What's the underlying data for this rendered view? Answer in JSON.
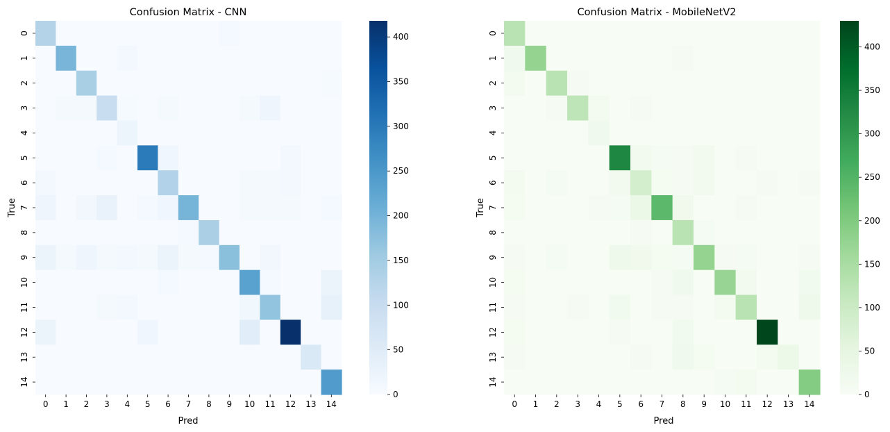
{
  "chart_data": [
    {
      "type": "heatmap",
      "title": "Confusion Matrix - CNN",
      "xlabel": "Pred",
      "ylabel": "True",
      "labels": [
        "0",
        "1",
        "2",
        "3",
        "4",
        "5",
        "6",
        "7",
        "8",
        "9",
        "10",
        "11",
        "12",
        "13",
        "14"
      ],
      "colormap": "Blues",
      "colorbar": {
        "min": 0,
        "max": 418,
        "ticks": [
          0,
          50,
          100,
          150,
          200,
          250,
          300,
          350,
          400
        ]
      },
      "matrix": [
        [
          128,
          0,
          0,
          0,
          0,
          0,
          0,
          0,
          0,
          8,
          0,
          0,
          0,
          0,
          0
        ],
        [
          0,
          196,
          0,
          0,
          10,
          0,
          0,
          0,
          0,
          0,
          0,
          0,
          0,
          0,
          0
        ],
        [
          0,
          0,
          142,
          0,
          0,
          0,
          0,
          0,
          0,
          0,
          0,
          0,
          0,
          0,
          4
        ],
        [
          0,
          6,
          6,
          98,
          4,
          0,
          6,
          0,
          0,
          0,
          6,
          18,
          0,
          0,
          0
        ],
        [
          0,
          0,
          0,
          0,
          22,
          0,
          0,
          0,
          0,
          0,
          0,
          0,
          0,
          0,
          0
        ],
        [
          0,
          0,
          0,
          8,
          0,
          298,
          16,
          0,
          0,
          0,
          0,
          0,
          10,
          0,
          0
        ],
        [
          10,
          0,
          0,
          0,
          0,
          0,
          132,
          0,
          0,
          0,
          6,
          6,
          10,
          0,
          0
        ],
        [
          18,
          0,
          12,
          30,
          0,
          8,
          16,
          198,
          0,
          0,
          6,
          6,
          6,
          0,
          8
        ],
        [
          0,
          0,
          0,
          0,
          0,
          0,
          0,
          8,
          140,
          0,
          0,
          0,
          0,
          0,
          0
        ],
        [
          26,
          6,
          18,
          6,
          10,
          6,
          26,
          6,
          8,
          176,
          0,
          12,
          0,
          0,
          0
        ],
        [
          0,
          0,
          0,
          0,
          0,
          0,
          8,
          0,
          0,
          0,
          232,
          8,
          0,
          0,
          24
        ],
        [
          0,
          0,
          0,
          6,
          10,
          0,
          0,
          0,
          0,
          0,
          14,
          168,
          0,
          0,
          34
        ],
        [
          24,
          0,
          0,
          0,
          0,
          16,
          0,
          0,
          0,
          0,
          46,
          0,
          418,
          0,
          0
        ],
        [
          0,
          0,
          0,
          0,
          0,
          0,
          0,
          0,
          0,
          0,
          0,
          0,
          0,
          60,
          0
        ],
        [
          0,
          0,
          0,
          0,
          0,
          0,
          0,
          0,
          0,
          0,
          0,
          0,
          0,
          0,
          244
        ]
      ]
    },
    {
      "type": "heatmap",
      "title": "Confusion Matrix - MobileNetV2",
      "xlabel": "Pred",
      "ylabel": "True",
      "labels": [
        "0",
        "1",
        "2",
        "3",
        "4",
        "5",
        "6",
        "7",
        "8",
        "9",
        "10",
        "11",
        "12",
        "13",
        "14"
      ],
      "colormap": "Greens",
      "colorbar": {
        "min": 0,
        "max": 430,
        "ticks": [
          0,
          50,
          100,
          150,
          200,
          250,
          300,
          350,
          400
        ]
      },
      "matrix": [
        [
          128,
          0,
          0,
          0,
          0,
          0,
          0,
          0,
          0,
          0,
          0,
          0,
          0,
          0,
          0
        ],
        [
          20,
          176,
          0,
          0,
          0,
          0,
          0,
          0,
          6,
          0,
          0,
          0,
          0,
          0,
          0
        ],
        [
          12,
          0,
          128,
          6,
          0,
          0,
          0,
          0,
          0,
          0,
          0,
          0,
          0,
          0,
          0
        ],
        [
          0,
          0,
          6,
          120,
          12,
          0,
          6,
          0,
          0,
          0,
          0,
          0,
          0,
          0,
          0
        ],
        [
          0,
          0,
          0,
          0,
          20,
          0,
          0,
          0,
          0,
          0,
          0,
          0,
          0,
          0,
          0
        ],
        [
          0,
          0,
          0,
          0,
          0,
          330,
          16,
          8,
          6,
          14,
          0,
          6,
          0,
          0,
          0
        ],
        [
          12,
          0,
          8,
          0,
          0,
          14,
          86,
          10,
          6,
          14,
          0,
          0,
          6,
          0,
          6
        ],
        [
          10,
          0,
          0,
          0,
          6,
          8,
          36,
          240,
          22,
          0,
          0,
          6,
          0,
          0,
          0
        ],
        [
          0,
          0,
          0,
          0,
          0,
          0,
          6,
          0,
          128,
          8,
          0,
          0,
          0,
          0,
          0
        ],
        [
          6,
          0,
          8,
          0,
          0,
          26,
          22,
          10,
          8,
          176,
          6,
          8,
          0,
          0,
          6
        ],
        [
          10,
          0,
          0,
          0,
          0,
          0,
          0,
          6,
          20,
          0,
          172,
          16,
          0,
          0,
          18
        ],
        [
          6,
          0,
          0,
          6,
          0,
          18,
          0,
          6,
          6,
          0,
          12,
          128,
          0,
          0,
          26
        ],
        [
          10,
          0,
          0,
          0,
          0,
          6,
          0,
          0,
          18,
          0,
          0,
          0,
          428,
          0,
          0
        ],
        [
          6,
          0,
          0,
          0,
          0,
          0,
          6,
          0,
          20,
          10,
          0,
          0,
          12,
          32,
          0
        ],
        [
          0,
          0,
          0,
          0,
          0,
          0,
          0,
          0,
          0,
          0,
          8,
          12,
          0,
          0,
          196
        ]
      ]
    }
  ]
}
